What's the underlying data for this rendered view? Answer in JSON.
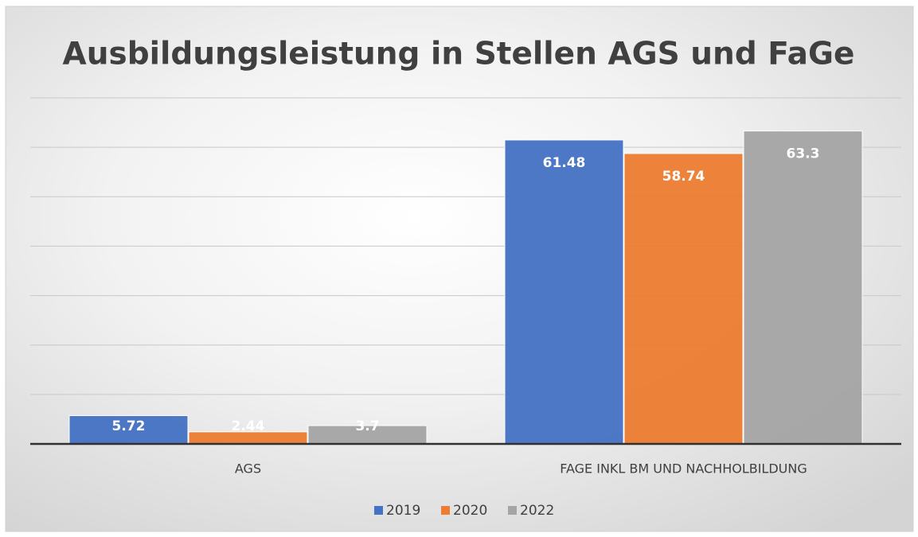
{
  "chart_data": {
    "type": "bar",
    "title": "Ausbildungsleistung in Stellen AGS und FaGe",
    "categories": [
      "AGS",
      "FAGE INKL BM UND NACHHOLBILDUNG"
    ],
    "series": [
      {
        "name": "2019",
        "color": "#4472c4",
        "values": [
          5.72,
          61.48
        ]
      },
      {
        "name": "2020",
        "color": "#ed7d31",
        "values": [
          2.44,
          58.74
        ]
      },
      {
        "name": "2022",
        "color": "#a5a5a5",
        "values": [
          3.7,
          63.3
        ]
      }
    ],
    "ylim": [
      0,
      70
    ],
    "yticks": [
      0,
      10,
      20,
      30,
      40,
      50,
      60,
      70
    ],
    "grid": true,
    "legend": "bottom"
  }
}
